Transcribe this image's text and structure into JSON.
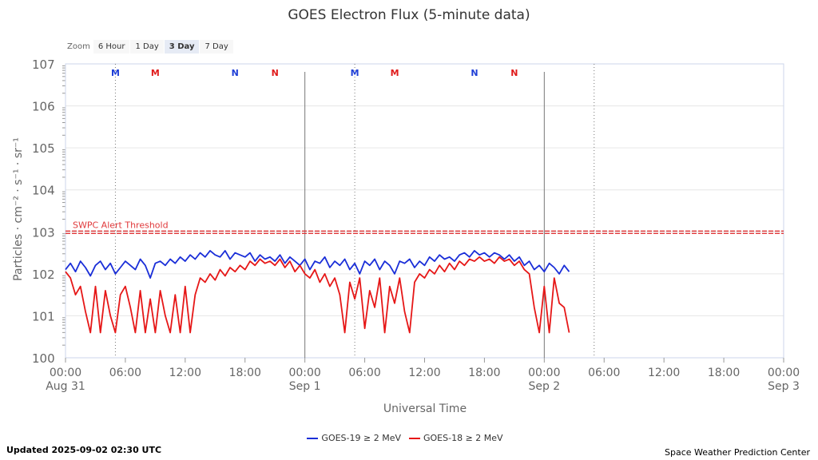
{
  "zoom": {
    "label": "Zoom",
    "buttons": [
      {
        "label": "6 Hour",
        "active": false
      },
      {
        "label": "1 Day",
        "active": false
      },
      {
        "label": "3 Day",
        "active": true
      },
      {
        "label": "7 Day",
        "active": false
      }
    ]
  },
  "footer": {
    "updated": "Updated 2025-09-02 02:30 UTC",
    "credit": "Space Weather Prediction Center"
  },
  "chart_data": {
    "type": "line",
    "title": "GOES Electron Flux (5-minute data)",
    "xlabel": "Universal Time",
    "ylabel": "Particles · cm⁻² · s⁻¹ · sr⁻¹",
    "y_scale": "log",
    "ylim_exp": [
      0,
      7
    ],
    "y_ticks": [
      {
        "base": "10",
        "exp": "0"
      },
      {
        "base": "10",
        "exp": "1"
      },
      {
        "base": "10",
        "exp": "2"
      },
      {
        "base": "10",
        "exp": "3"
      },
      {
        "base": "10",
        "exp": "4"
      },
      {
        "base": "10",
        "exp": "5"
      },
      {
        "base": "10",
        "exp": "6"
      },
      {
        "base": "10",
        "exp": "7"
      }
    ],
    "xlim_hours": [
      0,
      72
    ],
    "x_ticks": [
      {
        "h": 0,
        "label": "00:00",
        "date": "Aug 31"
      },
      {
        "h": 6,
        "label": "06:00",
        "date": ""
      },
      {
        "h": 12,
        "label": "12:00",
        "date": ""
      },
      {
        "h": 18,
        "label": "18:00",
        "date": ""
      },
      {
        "h": 24,
        "label": "00:00",
        "date": "Sep 1"
      },
      {
        "h": 30,
        "label": "06:00",
        "date": ""
      },
      {
        "h": 36,
        "label": "12:00",
        "date": ""
      },
      {
        "h": 42,
        "label": "18:00",
        "date": ""
      },
      {
        "h": 48,
        "label": "00:00",
        "date": "Sep 2"
      },
      {
        "h": 54,
        "label": "06:00",
        "date": ""
      },
      {
        "h": 60,
        "label": "12:00",
        "date": ""
      },
      {
        "h": 66,
        "label": "18:00",
        "date": ""
      },
      {
        "h": 72,
        "label": "00:00",
        "date": "Sep 3"
      }
    ],
    "grid": true,
    "legend_position": "bottom-center",
    "threshold": {
      "label": "SWPC Alert Threshold",
      "value_exp": 3,
      "color": "#e0383a"
    },
    "day_lines": [
      24,
      48
    ],
    "dotted_lines": [
      5,
      29,
      53
    ],
    "markers": [
      {
        "h": 5,
        "label": "M",
        "color": "#1f3fd6"
      },
      {
        "h": 9,
        "label": "M",
        "color": "#e01b1b"
      },
      {
        "h": 17,
        "label": "N",
        "color": "#1f3fd6"
      },
      {
        "h": 21,
        "label": "N",
        "color": "#e01b1b"
      },
      {
        "h": 29,
        "label": "M",
        "color": "#1f3fd6"
      },
      {
        "h": 33,
        "label": "M",
        "color": "#e01b1b"
      },
      {
        "h": 41,
        "label": "N",
        "color": "#1f3fd6"
      },
      {
        "h": 45,
        "label": "N",
        "color": "#e01b1b"
      }
    ],
    "series": [
      {
        "name": "GOES-19 ≥ 2 MeV",
        "color": "#1a2ed8",
        "x_hours": [
          0,
          0.5,
          1,
          1.5,
          2,
          2.5,
          3,
          3.5,
          4,
          4.5,
          5,
          5.5,
          6,
          6.5,
          7,
          7.5,
          8,
          8.5,
          9,
          9.5,
          10,
          10.5,
          11,
          11.5,
          12,
          12.5,
          13,
          13.5,
          14,
          14.5,
          15,
          15.5,
          16,
          16.5,
          17,
          17.5,
          18,
          18.5,
          19,
          19.5,
          20,
          20.5,
          21,
          21.5,
          22,
          22.5,
          23,
          23.5,
          24,
          24.5,
          25,
          25.5,
          26,
          26.5,
          27,
          27.5,
          28,
          28.5,
          29,
          29.5,
          30,
          30.5,
          31,
          31.5,
          32,
          32.5,
          33,
          33.5,
          34,
          34.5,
          35,
          35.5,
          36,
          36.5,
          37,
          37.5,
          38,
          38.5,
          39,
          39.5,
          40,
          40.5,
          41,
          41.5,
          42,
          42.5,
          43,
          43.5,
          44,
          44.5,
          45,
          45.5,
          46,
          46.5,
          47,
          47.5,
          48,
          48.5,
          49,
          49.5,
          50,
          50.5
        ],
        "y_exp": [
          2.1,
          2.25,
          2.05,
          2.3,
          2.15,
          1.95,
          2.2,
          2.3,
          2.1,
          2.25,
          2.0,
          2.15,
          2.3,
          2.2,
          2.1,
          2.35,
          2.2,
          1.9,
          2.25,
          2.3,
          2.2,
          2.35,
          2.25,
          2.4,
          2.3,
          2.45,
          2.35,
          2.5,
          2.4,
          2.55,
          2.45,
          2.4,
          2.55,
          2.35,
          2.5,
          2.45,
          2.4,
          2.5,
          2.3,
          2.45,
          2.35,
          2.4,
          2.3,
          2.45,
          2.25,
          2.4,
          2.3,
          2.2,
          2.35,
          2.1,
          2.3,
          2.25,
          2.4,
          2.15,
          2.3,
          2.2,
          2.35,
          2.1,
          2.25,
          2.0,
          2.3,
          2.2,
          2.35,
          2.1,
          2.3,
          2.2,
          2.0,
          2.3,
          2.25,
          2.35,
          2.15,
          2.3,
          2.2,
          2.4,
          2.3,
          2.45,
          2.35,
          2.4,
          2.3,
          2.45,
          2.5,
          2.4,
          2.55,
          2.45,
          2.5,
          2.4,
          2.5,
          2.45,
          2.35,
          2.45,
          2.3,
          2.4,
          2.2,
          2.3,
          2.1,
          2.2,
          2.05,
          2.25,
          2.15,
          2.0,
          2.2,
          2.05
        ]
      },
      {
        "name": "GOES-18 ≥ 2 MeV",
        "color": "#e61717",
        "x_hours": [
          0,
          0.5,
          1,
          1.5,
          2,
          2.5,
          3,
          3.5,
          4,
          4.5,
          5,
          5.5,
          6,
          6.5,
          7,
          7.5,
          8,
          8.5,
          9,
          9.5,
          10,
          10.5,
          11,
          11.5,
          12,
          12.5,
          13,
          13.5,
          14,
          14.5,
          15,
          15.5,
          16,
          16.5,
          17,
          17.5,
          18,
          18.5,
          19,
          19.5,
          20,
          20.5,
          21,
          21.5,
          22,
          22.5,
          23,
          23.5,
          24,
          24.5,
          25,
          25.5,
          26,
          26.5,
          27,
          27.5,
          28,
          28.5,
          29,
          29.5,
          30,
          30.5,
          31,
          31.5,
          32,
          32.5,
          33,
          33.5,
          34,
          34.5,
          35,
          35.5,
          36,
          36.5,
          37,
          37.5,
          38,
          38.5,
          39,
          39.5,
          40,
          40.5,
          41,
          41.5,
          42,
          42.5,
          43,
          43.5,
          44,
          44.5,
          45,
          45.5,
          46,
          46.5,
          47,
          47.5,
          48,
          48.5,
          49,
          49.5,
          50,
          50.5
        ],
        "y_exp": [
          2.05,
          1.9,
          1.5,
          1.7,
          1.1,
          0.6,
          1.7,
          0.6,
          1.6,
          1.0,
          0.6,
          1.5,
          1.7,
          1.2,
          0.6,
          1.6,
          0.6,
          1.4,
          0.6,
          1.6,
          1.0,
          0.6,
          1.5,
          0.6,
          1.7,
          0.6,
          1.5,
          1.9,
          1.8,
          2.0,
          1.85,
          2.1,
          1.95,
          2.15,
          2.05,
          2.2,
          2.1,
          2.3,
          2.2,
          2.35,
          2.25,
          2.3,
          2.2,
          2.35,
          2.15,
          2.3,
          2.05,
          2.2,
          2.0,
          1.9,
          2.1,
          1.8,
          2.0,
          1.7,
          1.9,
          1.5,
          0.6,
          1.8,
          1.4,
          1.9,
          0.7,
          1.6,
          1.2,
          1.9,
          0.6,
          1.7,
          1.3,
          1.9,
          1.1,
          0.6,
          1.8,
          2.0,
          1.9,
          2.1,
          2.0,
          2.2,
          2.05,
          2.25,
          2.1,
          2.3,
          2.2,
          2.35,
          2.3,
          2.4,
          2.3,
          2.35,
          2.25,
          2.4,
          2.3,
          2.35,
          2.2,
          2.3,
          2.1,
          2.0,
          1.2,
          0.6,
          1.7,
          0.6,
          1.9,
          1.3,
          1.2,
          0.6
        ]
      }
    ]
  }
}
